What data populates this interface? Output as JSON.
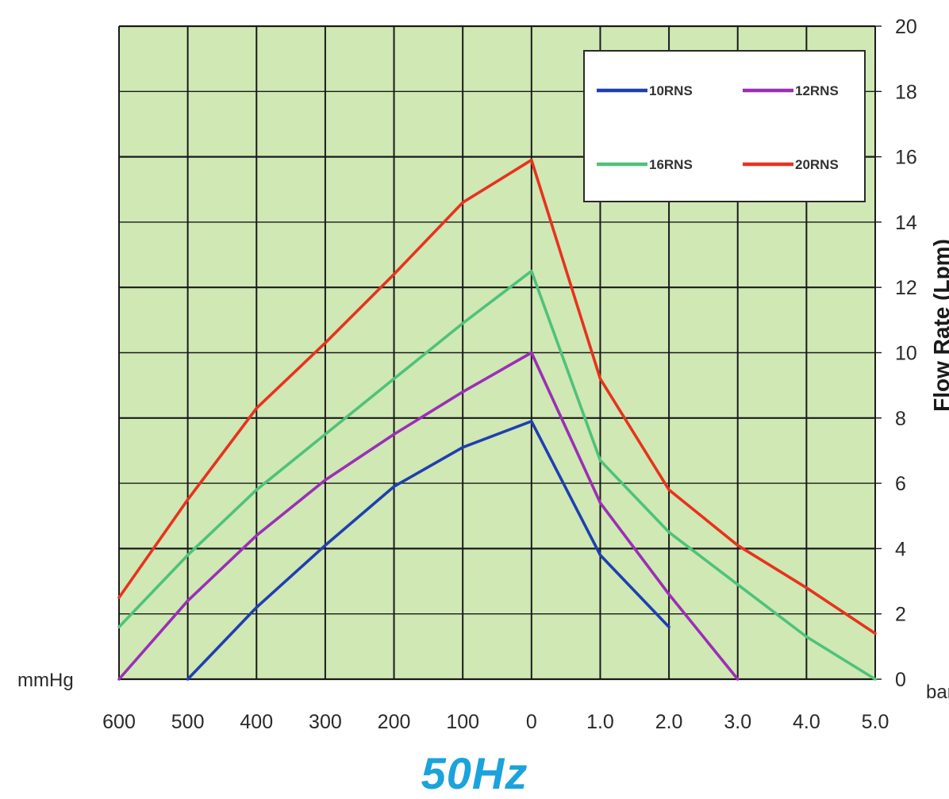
{
  "chart_data": {
    "type": "line",
    "title": "50Hz",
    "ylabel": "Flow Rate (Lpm)",
    "x_left_unit": "mmHg",
    "x_right_unit": "bar",
    "x_ticks": [
      "600",
      "500",
      "400",
      "300",
      "200",
      "100",
      "0",
      "1.0",
      "2.0",
      "3.0",
      "4.0",
      "5.0"
    ],
    "y_ticks": [
      "0",
      "2",
      "4",
      "6",
      "8",
      "10",
      "12",
      "14",
      "16",
      "18",
      "20"
    ],
    "ylim": [
      0,
      20
    ],
    "grid": true,
    "plot_background": "#cfe8b4",
    "legend_position": "top-right",
    "legend_layout": [
      [
        "10RNS",
        "12RNS"
      ],
      [
        "16RNS",
        "20RNS"
      ]
    ],
    "series": [
      {
        "name": "10RNS",
        "color": "#1f3fb0",
        "x": [
          "500",
          "400",
          "300",
          "200",
          "100",
          "0",
          "1.0",
          "2.0"
        ],
        "y": [
          0,
          2.2,
          4.1,
          5.9,
          7.1,
          7.9,
          3.8,
          1.6
        ]
      },
      {
        "name": "12RNS",
        "color": "#9b2fb5",
        "x": [
          "600",
          "500",
          "400",
          "300",
          "200",
          "100",
          "0",
          "1.0",
          "2.0",
          "3.0"
        ],
        "y": [
          0,
          2.4,
          4.4,
          6.1,
          7.5,
          8.8,
          10.0,
          5.4,
          2.6,
          0
        ]
      },
      {
        "name": "16RNS",
        "color": "#4fc27a",
        "x": [
          "600",
          "500",
          "400",
          "300",
          "200",
          "100",
          "0",
          "1.0",
          "2.0",
          "3.0",
          "4.0",
          "5.0"
        ],
        "y": [
          1.6,
          3.8,
          5.8,
          7.5,
          9.2,
          10.9,
          12.5,
          6.7,
          4.5,
          2.9,
          1.3,
          0
        ]
      },
      {
        "name": "20RNS",
        "color": "#e8321e",
        "x": [
          "600",
          "500",
          "400",
          "300",
          "200",
          "100",
          "0",
          "1.0",
          "2.0",
          "3.0",
          "4.0",
          "5.0"
        ],
        "y": [
          2.5,
          5.5,
          8.3,
          10.3,
          12.4,
          14.6,
          15.9,
          9.2,
          5.8,
          4.1,
          2.8,
          1.4
        ]
      }
    ]
  }
}
